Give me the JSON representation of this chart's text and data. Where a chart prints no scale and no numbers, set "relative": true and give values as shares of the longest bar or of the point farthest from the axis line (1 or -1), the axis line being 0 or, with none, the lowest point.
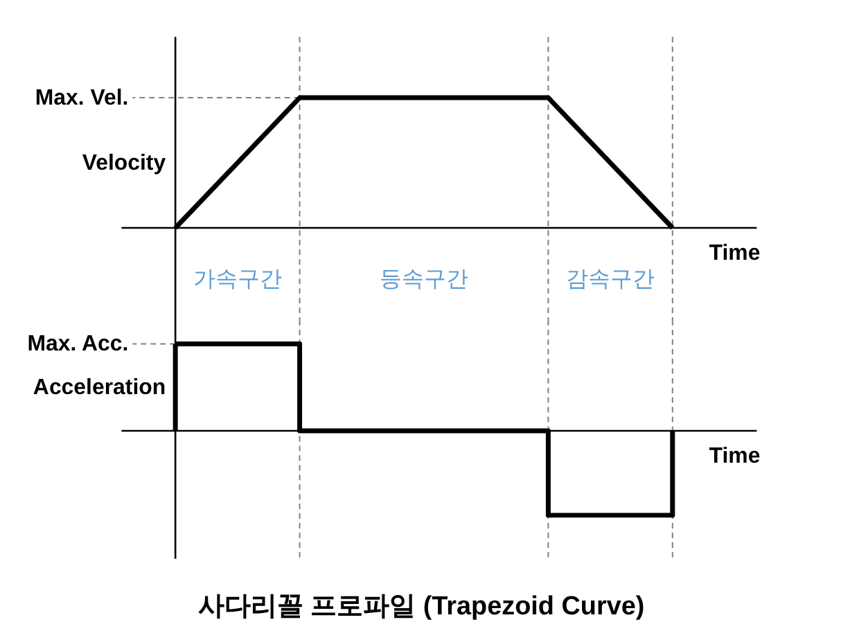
{
  "chart_data": [
    {
      "type": "line",
      "xlabel": "Time",
      "ylabel": "Velocity",
      "relative": true,
      "grid": "x",
      "categories": [
        null,
        "가속구간",
        null,
        null,
        "등속구간",
        null,
        null,
        "감속구간",
        null
      ],
      "values": [
        0,
        0.5,
        1,
        1,
        1,
        1,
        1,
        0.5,
        0
      ],
      "color": "#000000",
      "annotations": [
        "Max. Vel."
      ]
    },
    {
      "type": "step",
      "title": "사다리꼴 프로파일 (Trapezoid Curve)",
      "xlabel": "Time",
      "ylabel": "Acceleration",
      "relative": true,
      "grid": "x",
      "categories": [
        null,
        null,
        null,
        null,
        null,
        null,
        null,
        null,
        null
      ],
      "values": [
        1,
        1,
        0,
        0,
        0,
        0,
        -0.97,
        -0.97,
        0
      ],
      "color": "#000000",
      "annotations": [
        "Max. Acc."
      ]
    }
  ]
}
